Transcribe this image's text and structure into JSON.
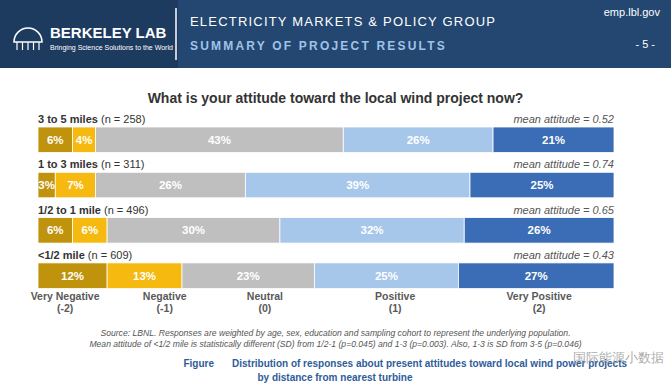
{
  "header": {
    "org": "BERKELEY LAB",
    "tagline": "Bringing Science Solutions to the World",
    "group": "ELECTRICITY MARKETS & POLICY GROUP",
    "subtitle": "SUMMARY OF PROJECT RESULTS",
    "url": "emp.lbl.gov",
    "page": "- 5 -"
  },
  "chart_data": {
    "type": "bar",
    "orientation": "horizontal",
    "stacked": true,
    "data_labels": true,
    "tick_labels": false,
    "title": "What is your attitude toward the local wind project now?",
    "categories": [
      "3 to 5 miles (n = 258)",
      "1 to 3 miles (n = 311)",
      "1/2 to 1 mile (n = 496)",
      "<1/2 mile (n = 609)"
    ],
    "mean_labels": [
      "mean attitude = 0.52",
      "mean attitude = 0.74",
      "mean attitude = 0.65",
      "mean attitude = 0.43"
    ],
    "xlim": [
      0,
      100
    ],
    "series": [
      {
        "name": "Very Negative",
        "code": "(-2)",
        "color": "#c0930c",
        "values": [
          6,
          3,
          6,
          12
        ],
        "value_labels": [
          "6%",
          "3%",
          "6%",
          "12%"
        ]
      },
      {
        "name": "Negative",
        "code": "(-1)",
        "color": "#f5b90f",
        "values": [
          4,
          7,
          6,
          13
        ],
        "value_labels": [
          "4%",
          "7%",
          "6%",
          "13%"
        ]
      },
      {
        "name": "Neutral",
        "code": "(0)",
        "color": "#bfbfbf",
        "values": [
          43,
          26,
          30,
          23
        ],
        "value_labels": [
          "43%",
          "26%",
          "30%",
          "23%"
        ]
      },
      {
        "name": "Positive",
        "code": "(1)",
        "color": "#a6c6ea",
        "values": [
          26,
          39,
          32,
          25
        ],
        "value_labels": [
          "26%",
          "39%",
          "32%",
          "25%"
        ]
      },
      {
        "name": "Very Positive",
        "code": "(2)",
        "color": "#3a6db5",
        "values": [
          21,
          25,
          26,
          27
        ],
        "value_labels": [
          "21%",
          "25%",
          "26%",
          "27%"
        ]
      }
    ],
    "notes": [
      "Source: LBNL. Responses are weighted by age, sex, education and sampling cohort to represent the underlying population.",
      "Mean attitude of <1/2 mile is statistically different (SD) from 1/2-1 (p=0.045) and 1-3 (p=0.003). Also, 1-3 is SD from 3-5 (p=0.046)"
    ],
    "caption_label": "Figure",
    "caption": [
      "Distribution of responses about present attitudes toward local wind power projects",
      "by distance from nearest turbine"
    ],
    "watermark": "国际能源小数据"
  }
}
